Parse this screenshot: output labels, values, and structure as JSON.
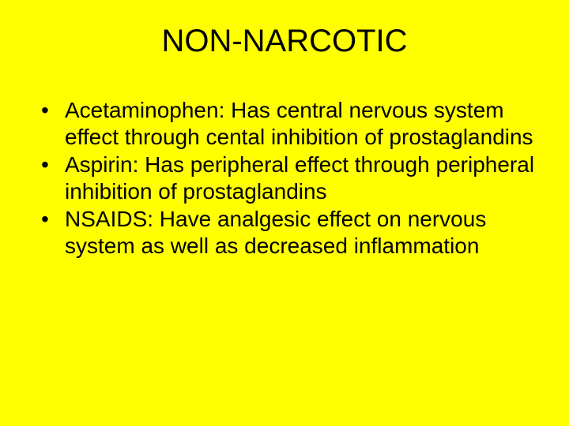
{
  "slide": {
    "background_color": "#ffff00",
    "text_color": "#000000",
    "title": "NON-NARCOTIC",
    "title_fontsize": 40,
    "body_fontsize": 28,
    "font_family": "Arial",
    "bullets": [
      "Acetaminophen: Has central nervous system effect through cental inhibition of prostaglandins",
      "Aspirin:  Has peripheral effect through peripheral inhibition of prostaglandins",
      "NSAIDS: Have analgesic effect on nervous system as well as decreased inflammation"
    ]
  }
}
